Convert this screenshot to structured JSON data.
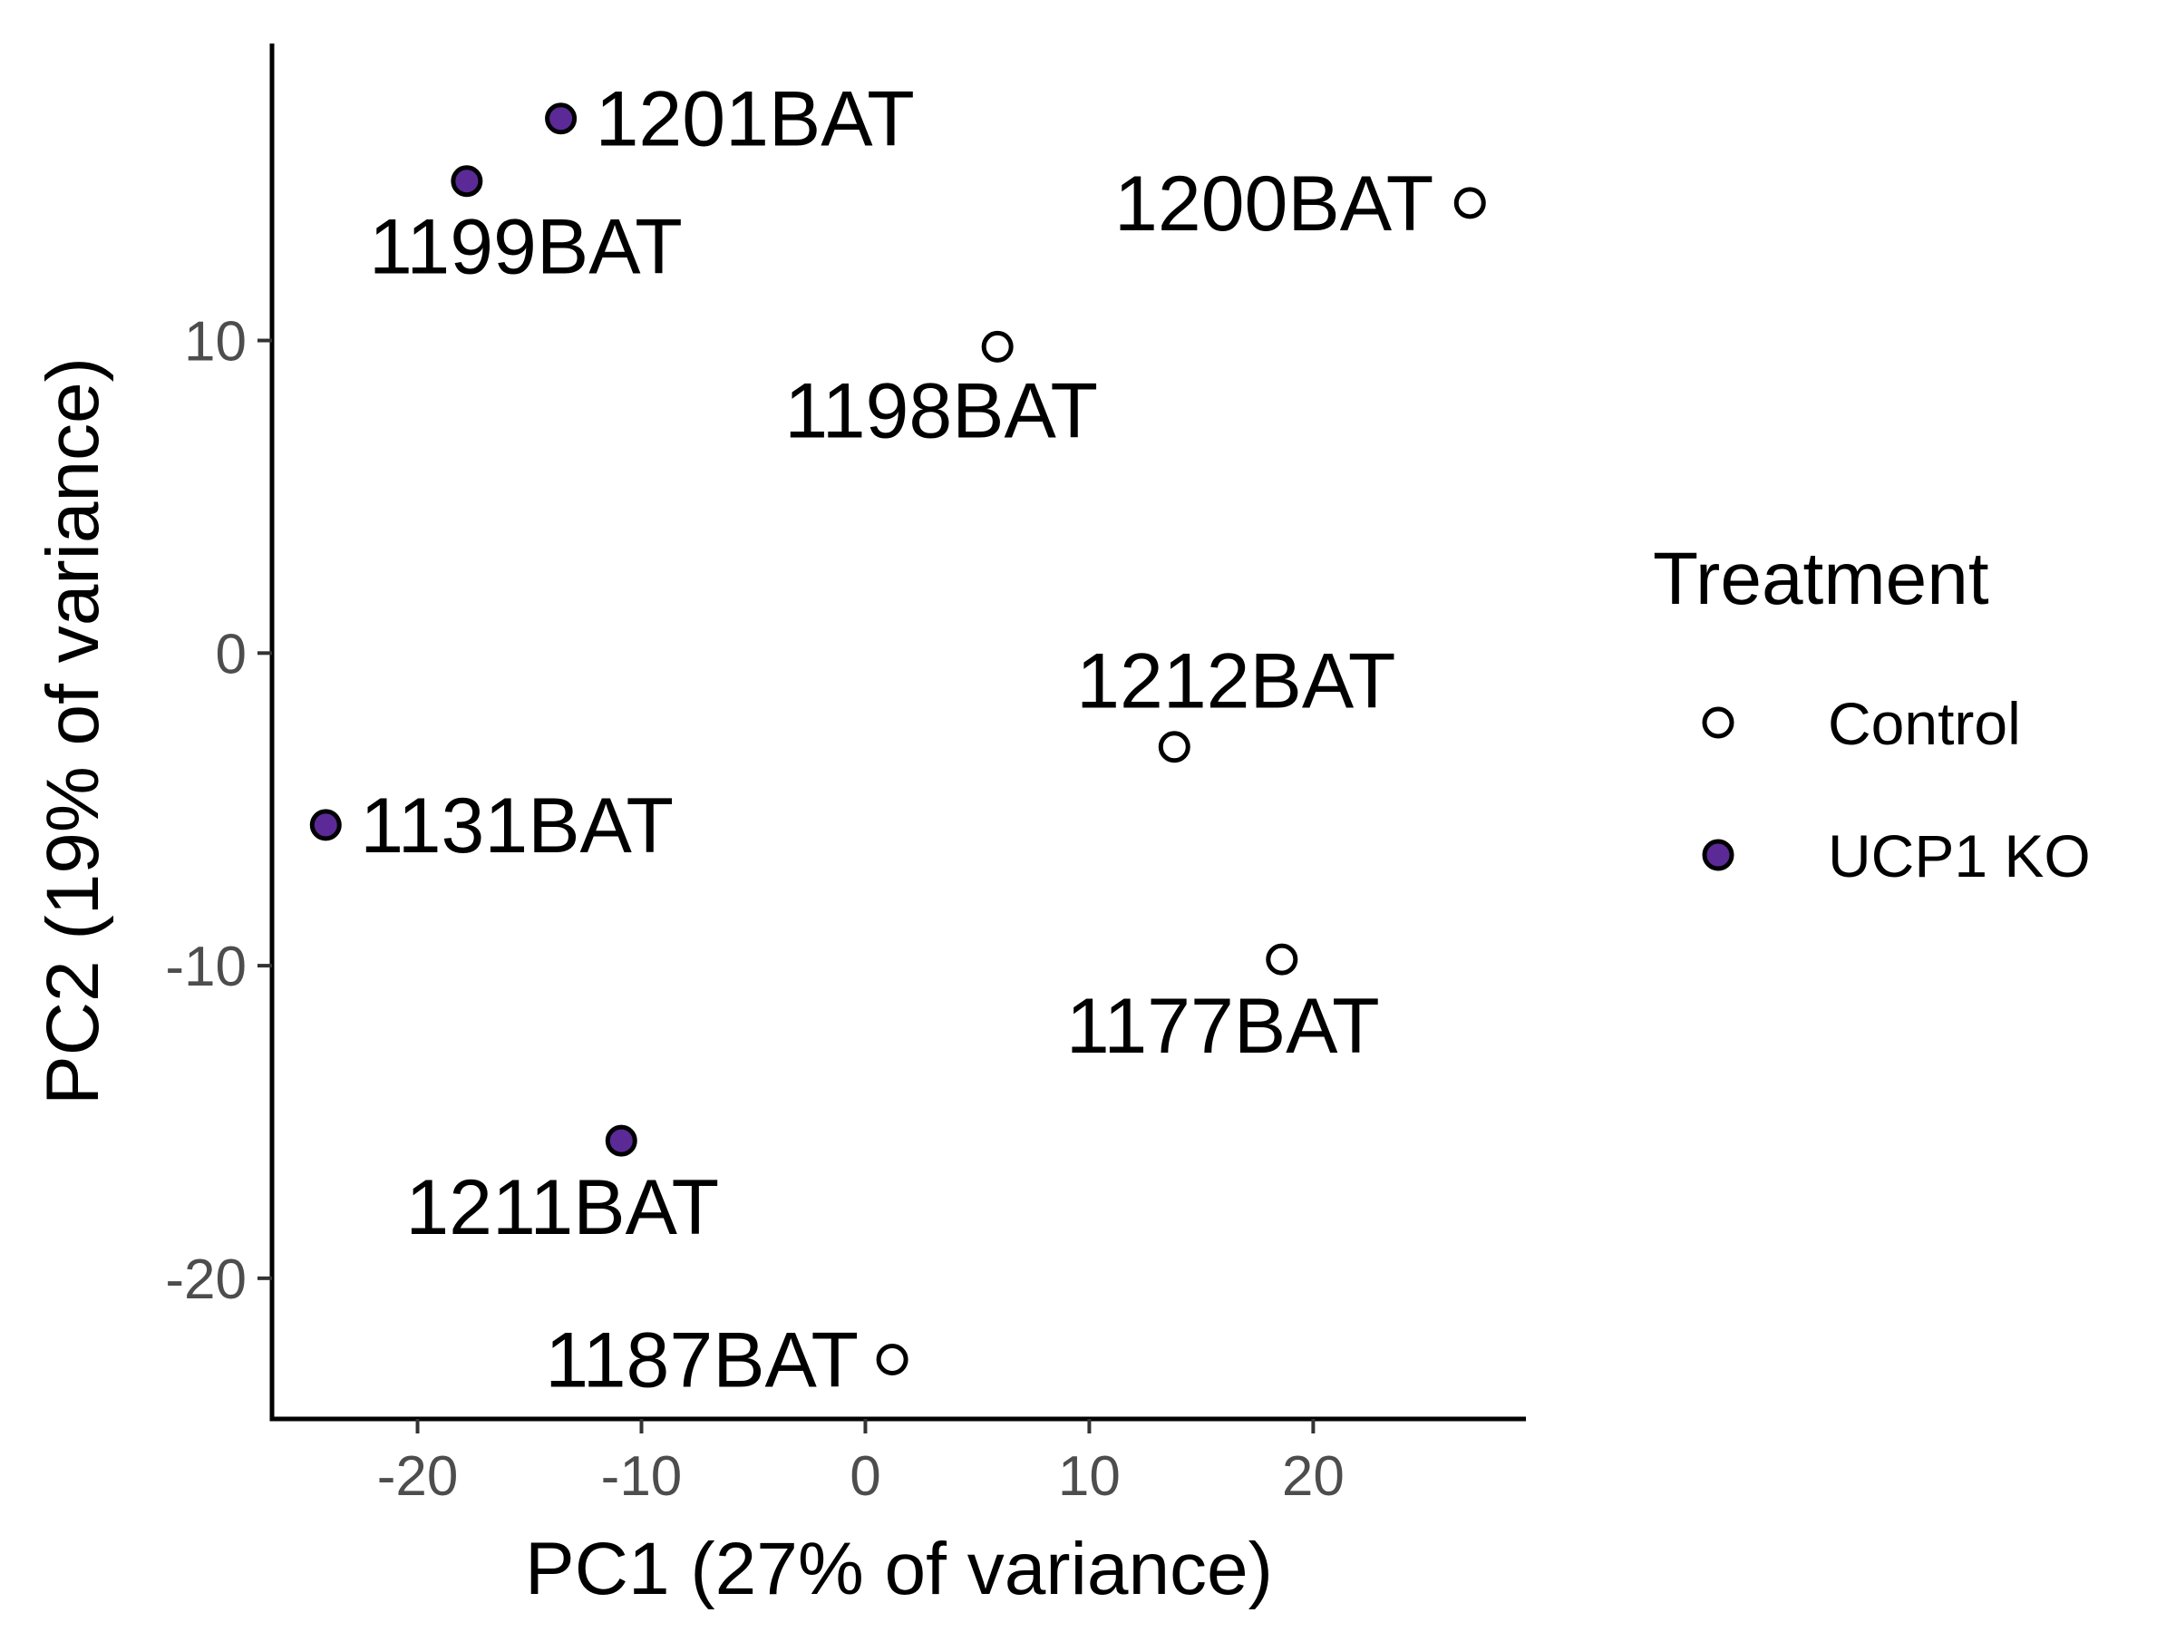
{
  "chart_data": {
    "type": "scatter",
    "xlabel": "PC1 (27% of variance)",
    "ylabel": "PC2 (19% of variance)",
    "xlim": [
      -26.5,
      29.5
    ],
    "ylim": [
      -24.5,
      19.5
    ],
    "x_ticks": [
      -20,
      -10,
      0,
      10,
      20
    ],
    "y_ticks": [
      -20,
      -10,
      0,
      10
    ],
    "x_tick_labels": [
      "-20",
      "-10",
      "0",
      "10",
      "20"
    ],
    "y_tick_labels": [
      "-20",
      "-10",
      "0",
      "10"
    ],
    "grid": false,
    "legend": {
      "title": "Treatment",
      "position": "right",
      "entries": [
        "Control",
        "UCP1 KO"
      ]
    },
    "colors": {
      "Control": "#ffffff",
      "UCP1 KO": "#5b2a96",
      "outline": "#000000"
    },
    "series": [
      {
        "name": "Control",
        "points": [
          {
            "label": "1200BAT",
            "x": 27.0,
            "y": 14.4
          },
          {
            "label": "1198BAT",
            "x": 5.9,
            "y": 9.8
          },
          {
            "label": "1212BAT",
            "x": 13.8,
            "y": -3.0
          },
          {
            "label": "1177BAT",
            "x": 18.6,
            "y": -9.8
          },
          {
            "label": "1187BAT",
            "x": 1.2,
            "y": -22.6
          }
        ]
      },
      {
        "name": "UCP1 KO",
        "points": [
          {
            "label": "1201BAT",
            "x": -13.6,
            "y": 17.1
          },
          {
            "label": "1199BAT",
            "x": -17.8,
            "y": 15.1
          },
          {
            "label": "1131BAT",
            "x": -24.1,
            "y": -5.5
          },
          {
            "label": "1211BAT",
            "x": -10.9,
            "y": -15.6
          }
        ]
      }
    ]
  }
}
